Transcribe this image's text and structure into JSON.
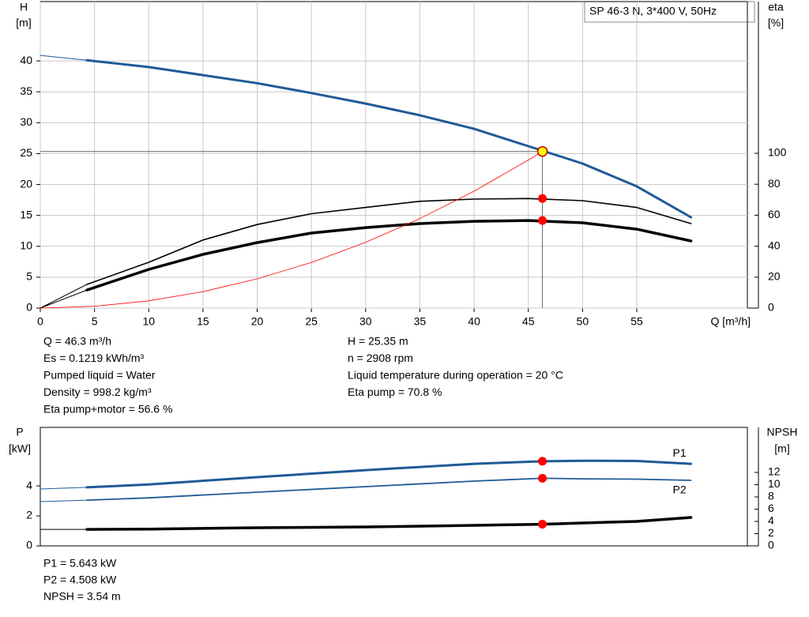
{
  "chart_data": [
    {
      "type": "line",
      "title": "SP 46-3 N, 3*400 V, 50Hz",
      "y_label": "H",
      "y_unit": "[m]",
      "y2_label": "eta",
      "y2_unit": "[%]",
      "x_label": "Q [m³/h]",
      "xlim": [
        0,
        65.2
      ],
      "xticks": [
        0,
        5,
        10,
        15,
        20,
        25,
        30,
        35,
        40,
        45,
        50,
        55
      ],
      "ylim": [
        0,
        49.6
      ],
      "yticks": [
        0,
        5,
        10,
        15,
        20,
        25,
        30,
        35,
        40
      ],
      "y2lim": [
        0,
        198
      ],
      "y2ticks": [
        0,
        20,
        40,
        60,
        80,
        100
      ],
      "grid": true,
      "series": [
        {
          "x": [
            0,
            4.3
          ],
          "values": [
            40.9,
            40.1
          ],
          "color": "#1f5a96",
          "width": 1
        },
        {
          "x": [
            4.3,
            10,
            15,
            20,
            25,
            30,
            35,
            40,
            45,
            50,
            55,
            60
          ],
          "values": [
            40.1,
            39.0,
            37.7,
            36.4,
            34.8,
            33.1,
            31.2,
            29.0,
            26.2,
            23.4,
            19.7,
            14.7
          ],
          "color": "#1f5a96",
          "width": 3
        },
        {
          "x": [
            0,
            4.3
          ],
          "values": [
            0,
            15.3
          ],
          "axis": "y2",
          "color": "#000000",
          "width": 1
        },
        {
          "x": [
            4.3,
            10,
            15,
            20,
            25,
            30,
            35,
            40,
            45,
            50,
            55,
            60
          ],
          "values": [
            15.3,
            29.6,
            44,
            54,
            61,
            65,
            69,
            70.4,
            70.8,
            69.4,
            65,
            54.6
          ],
          "axis": "y2",
          "color": "#000000",
          "width": 1.6
        },
        {
          "x": [
            0,
            4.3
          ],
          "values": [
            0,
            11.7
          ],
          "axis": "y2",
          "color": "#000000",
          "width": 1
        },
        {
          "x": [
            4.3,
            10,
            15,
            20,
            25,
            30,
            35,
            40,
            45,
            50,
            55,
            60
          ],
          "values": [
            11.7,
            25,
            34.7,
            42.3,
            48.5,
            52,
            54.6,
            56.1,
            56.6,
            55.1,
            51,
            43.4
          ],
          "axis": "y2",
          "color": "#000000",
          "width": 3.5
        },
        {
          "x": [
            0,
            5,
            10,
            15,
            20,
            25,
            30,
            35,
            40,
            45,
            46.3
          ],
          "values": [
            0,
            0.3,
            1.18,
            2.66,
            4.73,
            7.39,
            10.64,
            14.49,
            18.92,
            23.95,
            25.35
          ],
          "color": "#ff0000",
          "width": 0.8
        }
      ],
      "markers": [
        {
          "x": 46.3,
          "y": 25.35,
          "color": "#ffff00",
          "guides": true
        },
        {
          "x": 46.3,
          "y": 70.8,
          "axis": "y2",
          "color": "#ff0000"
        },
        {
          "x": 46.3,
          "y": 56.6,
          "axis": "y2",
          "color": "#ff0000"
        }
      ]
    },
    {
      "type": "line",
      "y_label": "P",
      "y_unit": "[kW]",
      "y2_label": "NPSH",
      "y2_unit": "[m]",
      "xlim": [
        0,
        65.2
      ],
      "ylim": [
        0,
        7.9
      ],
      "yticks": [
        0,
        2,
        4
      ],
      "y2lim": [
        0,
        19.35
      ],
      "y2ticks": [
        0,
        2,
        4,
        6,
        8,
        10,
        12
      ],
      "grid": false,
      "series": [
        {
          "x": [
            0,
            4.3
          ],
          "values": [
            3.79,
            3.9
          ],
          "color": "#1f5a96",
          "width": 1
        },
        {
          "name": "P1",
          "x": [
            4.3,
            10,
            20,
            30,
            40,
            46.3,
            50,
            55,
            60
          ],
          "values": [
            3.9,
            4.1,
            4.58,
            5.05,
            5.47,
            5.643,
            5.68,
            5.66,
            5.47
          ],
          "color": "#1f5a96",
          "width": 3
        },
        {
          "x": [
            0,
            4.3
          ],
          "values": [
            2.95,
            3.05
          ],
          "color": "#1f5a96",
          "width": 1
        },
        {
          "name": "P2",
          "x": [
            4.3,
            10,
            20,
            30,
            40,
            46.3,
            50,
            55,
            60
          ],
          "values": [
            3.05,
            3.2,
            3.58,
            3.95,
            4.32,
            4.508,
            4.47,
            4.45,
            4.37
          ],
          "color": "#1f5a96",
          "width": 1.8
        },
        {
          "x": [
            0,
            4.3
          ],
          "values": [
            2.7,
            2.7
          ],
          "axis": "y2",
          "color": "#000000",
          "width": 1
        },
        {
          "x": [
            4.3,
            10,
            20,
            30,
            40,
            46.3,
            50,
            55,
            60
          ],
          "values": [
            2.7,
            2.75,
            2.97,
            3.1,
            3.35,
            3.54,
            3.74,
            4.0,
            4.65
          ],
          "axis": "y2",
          "color": "#000000",
          "width": 3.5
        }
      ],
      "markers": [
        {
          "x": 46.3,
          "y": 5.643,
          "color": "#ff0000"
        },
        {
          "x": 46.3,
          "y": 4.508,
          "color": "#ff0000"
        },
        {
          "x": 46.3,
          "y": 3.54,
          "axis": "y2",
          "color": "#ff0000"
        }
      ]
    }
  ],
  "operating_info": {
    "left": [
      "Q = 46.3 m³/h",
      "Es = 0.1219 kWh/m³",
      "Pumped liquid = Water",
      "Density = 998.2 kg/m³",
      "Eta pump+motor = 56.6 %"
    ],
    "right": [
      "H = 25.35 m",
      "n = 2908 rpm",
      "Liquid temperature during operation = 20 °C",
      "Eta pump = 70.8 %"
    ]
  },
  "power_info": [
    "P1 = 5.643 kW",
    "P2 = 4.508 kW",
    "NPSH = 3.54 m"
  ]
}
